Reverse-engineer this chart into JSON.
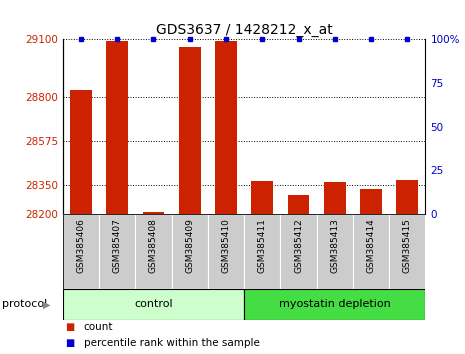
{
  "title": "GDS3637 / 1428212_x_at",
  "samples": [
    "GSM385406",
    "GSM385407",
    "GSM385408",
    "GSM385409",
    "GSM385410",
    "GSM385411",
    "GSM385412",
    "GSM385413",
    "GSM385414",
    "GSM385415"
  ],
  "counts": [
    28840,
    29090,
    28210,
    29060,
    29090,
    28370,
    28300,
    28365,
    28330,
    28375
  ],
  "percentile_ranks": [
    100,
    100,
    100,
    100,
    100,
    100,
    100,
    100,
    100,
    100
  ],
  "ylim_left": [
    28200,
    29100
  ],
  "yticks_left": [
    28200,
    28350,
    28575,
    28800,
    29100
  ],
  "ylim_right": [
    0,
    100
  ],
  "yticks_right": [
    0,
    25,
    50,
    75,
    100
  ],
  "groups": [
    {
      "label": "control",
      "start": 0,
      "end": 4,
      "color": "#ccffcc",
      "edge_color": "#000000"
    },
    {
      "label": "myostatin depletion",
      "start": 5,
      "end": 9,
      "color": "#44dd44",
      "edge_color": "#000000"
    }
  ],
  "bar_color": "#cc2200",
  "percentile_color": "#0000cc",
  "bar_width": 0.6,
  "background_color": "#ffffff",
  "protocol_label": "protocol",
  "legend_items": [
    {
      "label": "count",
      "color": "#cc2200"
    },
    {
      "label": "percentile rank within the sample",
      "color": "#0000cc"
    }
  ],
  "title_fontsize": 10,
  "tick_fontsize": 7.5,
  "sample_fontsize": 6.5,
  "group_fontsize": 8,
  "legend_fontsize": 7.5,
  "protocol_fontsize": 8
}
